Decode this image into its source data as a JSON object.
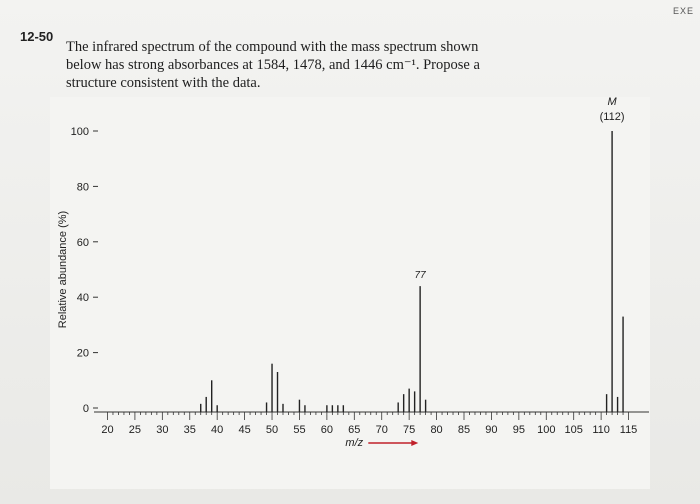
{
  "corner_label": "EXE",
  "problem": {
    "number": "12-50",
    "lines": [
      "The infrared spectrum of the compound with the mass spectrum shown",
      "below has strong absorbances at 1584, 1478, and 1446 cm⁻¹. Propose a",
      "structure consistent with the data."
    ]
  },
  "chart_data": {
    "type": "bar",
    "xlabel": "m/z",
    "ylabel": "Relative abundance (%)",
    "xlim": [
      19,
      118
    ],
    "ylim": [
      0,
      100
    ],
    "x_ticks": [
      20,
      25,
      30,
      35,
      40,
      45,
      50,
      55,
      60,
      65,
      70,
      75,
      80,
      85,
      90,
      95,
      100,
      105,
      110,
      115
    ],
    "y_ticks": [
      0,
      20,
      40,
      60,
      80,
      100
    ],
    "peaks": [
      {
        "mz": 37,
        "value": 1.5
      },
      {
        "mz": 38,
        "value": 4
      },
      {
        "mz": 39,
        "value": 10
      },
      {
        "mz": 40,
        "value": 1
      },
      {
        "mz": 49,
        "value": 2
      },
      {
        "mz": 50,
        "value": 16
      },
      {
        "mz": 51,
        "value": 13
      },
      {
        "mz": 52,
        "value": 1.5
      },
      {
        "mz": 55,
        "value": 3
      },
      {
        "mz": 56,
        "value": 1
      },
      {
        "mz": 60,
        "value": 1
      },
      {
        "mz": 61,
        "value": 1
      },
      {
        "mz": 62,
        "value": 1
      },
      {
        "mz": 63,
        "value": 1
      },
      {
        "mz": 73,
        "value": 2
      },
      {
        "mz": 74,
        "value": 5
      },
      {
        "mz": 75,
        "value": 7
      },
      {
        "mz": 76,
        "value": 6
      },
      {
        "mz": 77,
        "value": 44
      },
      {
        "mz": 78,
        "value": 3
      },
      {
        "mz": 111,
        "value": 5
      },
      {
        "mz": 112,
        "value": 100
      },
      {
        "mz": 113,
        "value": 4
      },
      {
        "mz": 114,
        "value": 33
      }
    ],
    "annotations": [
      {
        "mz": 77,
        "text": "77"
      },
      {
        "mz": 112,
        "text": "M",
        "sub": "(112)"
      }
    ]
  }
}
